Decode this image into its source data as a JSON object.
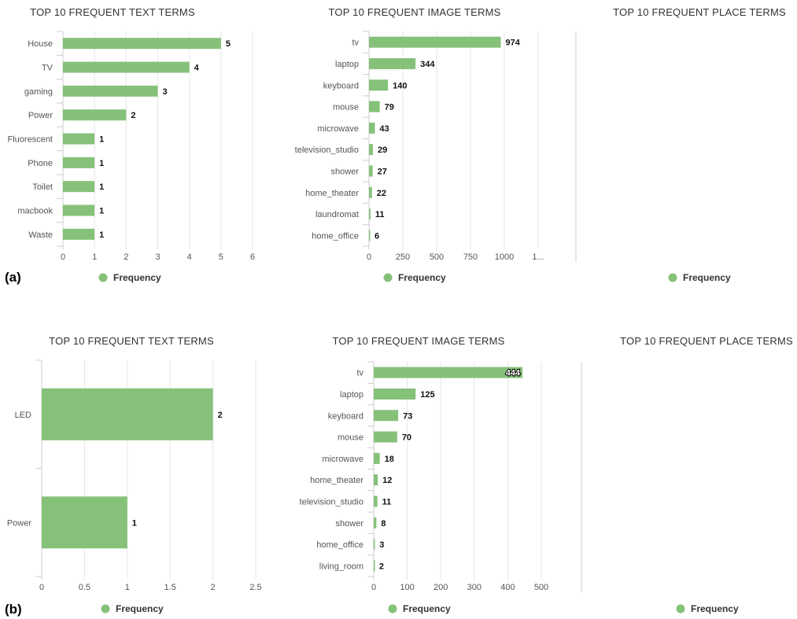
{
  "panels": [
    {
      "label": "(a)",
      "charts": [
        {
          "type": "bar",
          "orientation": "horizontal",
          "title": "TOP 10 FREQUENT TEXT TERMS",
          "categories": [
            "House",
            "TV",
            "gaming",
            "Power",
            "Fluorescent",
            "Phone",
            "Toilet",
            "macbook",
            "Waste"
          ],
          "series": [
            {
              "name": "Frequency",
              "values": [
                5,
                4,
                3,
                2,
                1,
                1,
                1,
                1,
                1
              ]
            }
          ],
          "xticks": [
            "0",
            "1",
            "2",
            "3",
            "4",
            "5",
            "6"
          ],
          "xlim": [
            0,
            6
          ],
          "grid": true,
          "legend": "bottom-center",
          "legend_label": "Frequency"
        },
        {
          "type": "bar",
          "orientation": "horizontal",
          "title": "TOP 10 FREQUENT IMAGE TERMS",
          "categories": [
            "tv",
            "laptop",
            "keyboard",
            "mouse",
            "microwave",
            "television_studio",
            "shower",
            "home_theater",
            "laundromat",
            "home_office"
          ],
          "series": [
            {
              "name": "Frequency",
              "values": [
                974,
                344,
                140,
                79,
                43,
                29,
                27,
                22,
                11,
                6
              ]
            }
          ],
          "xticks": [
            "0",
            "250",
            "500",
            "750",
            "1000",
            "1..."
          ],
          "xlim": [
            0,
            1250
          ],
          "grid": true,
          "legend": "bottom-center",
          "legend_label": "Frequency"
        },
        {
          "type": "bar",
          "orientation": "horizontal",
          "title": "TOP 10 FREQUENT PLACE TERMS",
          "categories": [],
          "series": [
            {
              "name": "Frequency",
              "values": []
            }
          ],
          "xticks": [],
          "grid": false,
          "legend": "bottom-center",
          "legend_label": "Frequency"
        }
      ]
    },
    {
      "label": "(b)",
      "charts": [
        {
          "type": "bar",
          "orientation": "horizontal",
          "title": "TOP 10 FREQUENT TEXT TERMS",
          "categories": [
            "LED",
            "Power"
          ],
          "series": [
            {
              "name": "Frequency",
              "values": [
                2,
                1
              ]
            }
          ],
          "xticks": [
            "0",
            "0.5",
            "1",
            "1.5",
            "2",
            "2.5"
          ],
          "xlim": [
            0,
            2.5
          ],
          "grid": true,
          "legend": "bottom-center",
          "legend_label": "Frequency"
        },
        {
          "type": "bar",
          "orientation": "horizontal",
          "title": "TOP 10 FREQUENT IMAGE TERMS",
          "categories": [
            "tv",
            "laptop",
            "keyboard",
            "mouse",
            "microwave",
            "home_theater",
            "television_studio",
            "shower",
            "home_office",
            "living_room"
          ],
          "series": [
            {
              "name": "Frequency",
              "values": [
                444,
                125,
                73,
                70,
                18,
                12,
                11,
                8,
                3,
                2
              ]
            }
          ],
          "xticks": [
            "0",
            "100",
            "200",
            "300",
            "400",
            "500"
          ],
          "xlim": [
            0,
            500
          ],
          "grid": true,
          "legend": "bottom-center",
          "legend_label": "Frequency"
        },
        {
          "type": "bar",
          "orientation": "horizontal",
          "title": "TOP 10 FREQUENT PLACE TERMS",
          "categories": [],
          "series": [
            {
              "name": "Frequency",
              "values": []
            }
          ],
          "xticks": [],
          "grid": false,
          "legend": "bottom-center",
          "legend_label": "Frequency"
        }
      ]
    }
  ],
  "colors": {
    "bar": "#86c17a",
    "legend_dot": "#86c17a"
  },
  "chart_data": [
    {
      "type": "bar",
      "title": "TOP 10 FREQUENT TEXT TERMS",
      "categories": [
        "House",
        "TV",
        "gaming",
        "Power",
        "Fluorescent",
        "Phone",
        "Toilet",
        "macbook",
        "Waste"
      ],
      "series": [
        {
          "name": "Frequency",
          "values": [
            5,
            4,
            3,
            2,
            1,
            1,
            1,
            1,
            1
          ]
        }
      ],
      "xlim": [
        0,
        6
      ],
      "grid": true,
      "legend": "bottom-center"
    },
    {
      "type": "bar",
      "title": "TOP 10 FREQUENT IMAGE TERMS",
      "categories": [
        "tv",
        "laptop",
        "keyboard",
        "mouse",
        "microwave",
        "television_studio",
        "shower",
        "home_theater",
        "laundromat",
        "home_office"
      ],
      "series": [
        {
          "name": "Frequency",
          "values": [
            974,
            344,
            140,
            79,
            43,
            29,
            27,
            22,
            11,
            6
          ]
        }
      ],
      "xlim": [
        0,
        1250
      ],
      "grid": true,
      "legend": "bottom-center"
    },
    {
      "type": "bar",
      "title": "TOP 10 FREQUENT PLACE TERMS",
      "categories": [],
      "series": [
        {
          "name": "Frequency",
          "values": []
        }
      ],
      "grid": false,
      "legend": "bottom-center"
    },
    {
      "type": "bar",
      "title": "TOP 10 FREQUENT TEXT TERMS",
      "categories": [
        "LED",
        "Power"
      ],
      "series": [
        {
          "name": "Frequency",
          "values": [
            2,
            1
          ]
        }
      ],
      "xlim": [
        0,
        2.5
      ],
      "grid": true,
      "legend": "bottom-center"
    },
    {
      "type": "bar",
      "title": "TOP 10 FREQUENT IMAGE TERMS",
      "categories": [
        "tv",
        "laptop",
        "keyboard",
        "mouse",
        "microwave",
        "home_theater",
        "television_studio",
        "shower",
        "home_office",
        "living_room"
      ],
      "series": [
        {
          "name": "Frequency",
          "values": [
            444,
            125,
            73,
            70,
            18,
            12,
            11,
            8,
            3,
            2
          ]
        }
      ],
      "xlim": [
        0,
        500
      ],
      "grid": true,
      "legend": "bottom-center"
    },
    {
      "type": "bar",
      "title": "TOP 10 FREQUENT PLACE TERMS",
      "categories": [],
      "series": [
        {
          "name": "Frequency",
          "values": []
        }
      ],
      "grid": false,
      "legend": "bottom-center"
    }
  ]
}
